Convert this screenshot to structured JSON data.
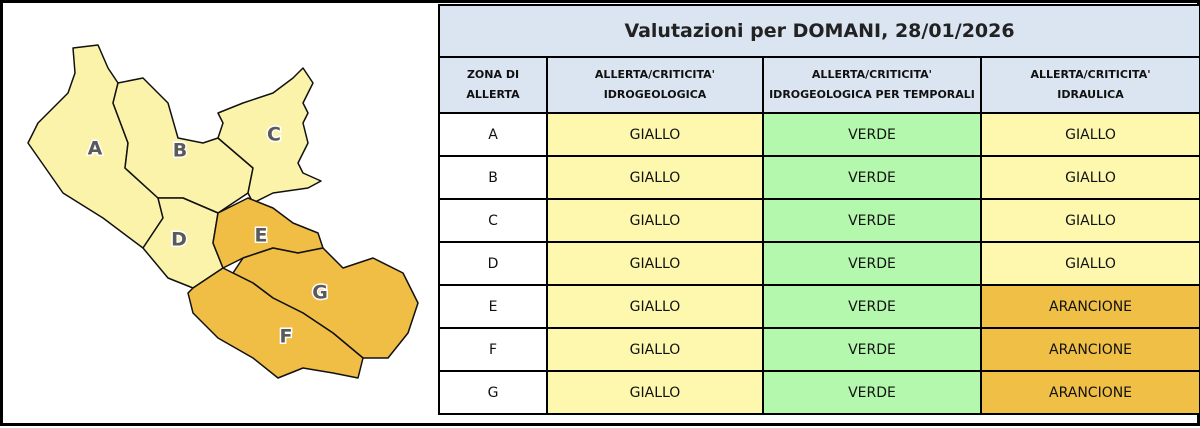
{
  "map": {
    "zones": [
      {
        "label": "A",
        "color": "#fbf3a9"
      },
      {
        "label": "B",
        "color": "#fbf3a9"
      },
      {
        "label": "C",
        "color": "#fbf3a9"
      },
      {
        "label": "D",
        "color": "#fbf3a9"
      },
      {
        "label": "E",
        "color": "#f0bd45"
      },
      {
        "label": "G",
        "color": "#f0bd45"
      },
      {
        "label": "F",
        "color": "#f0bd45"
      }
    ]
  },
  "table": {
    "title": "Valutazioni per DOMANI, 28/01/2026",
    "header": [
      [
        "ZONA DI",
        "ALLERTA"
      ],
      [
        "ALLERTA/CRITICITA'",
        "IDROGEOLOGICA"
      ],
      [
        "ALLERTA/CRITICITA'",
        "IDROGEOLOGICA PER TEMPORALI"
      ],
      [
        "ALLERTA/CRITICITA'",
        "IDRAULICA"
      ]
    ],
    "level_colors": {
      "GIALLO": "#fdf8ad",
      "VERDE": "#b4f8ad",
      "ARANCIONE": "#f0bf45"
    },
    "rows": [
      [
        "A",
        "GIALLO",
        "VERDE",
        "GIALLO"
      ],
      [
        "B",
        "GIALLO",
        "VERDE",
        "GIALLO"
      ],
      [
        "C",
        "GIALLO",
        "VERDE",
        "GIALLO"
      ],
      [
        "D",
        "GIALLO",
        "VERDE",
        "GIALLO"
      ],
      [
        "E",
        "GIALLO",
        "VERDE",
        "ARANCIONE"
      ],
      [
        "F",
        "GIALLO",
        "VERDE",
        "ARANCIONE"
      ],
      [
        "G",
        "GIALLO",
        "VERDE",
        "ARANCIONE"
      ]
    ]
  }
}
